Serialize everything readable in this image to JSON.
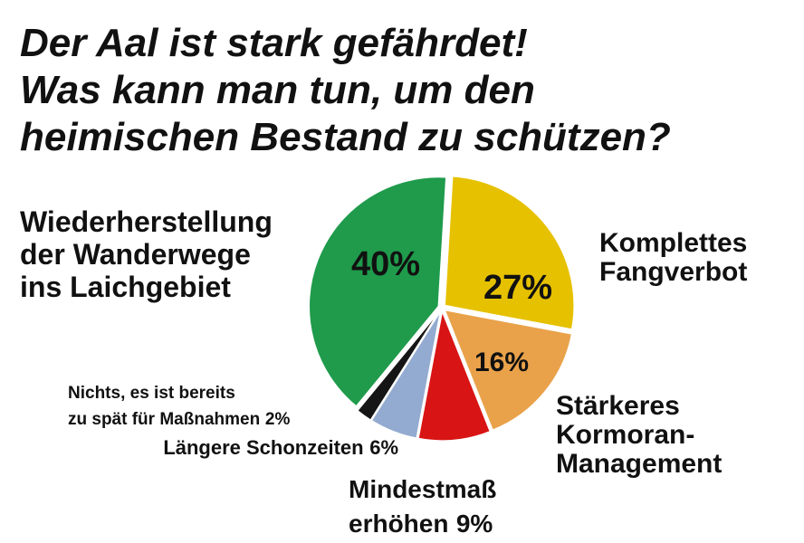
{
  "chart_data": {
    "type": "pie",
    "title": [
      "Der Aal ist stark gefährdet!",
      "Was kann man tun, um den",
      "heimischen Bestand zu schützen?"
    ],
    "categories": [
      [
        "Komplettes",
        "Fangverbot"
      ],
      [
        "Stärkeres",
        "Kormoran-",
        "Management"
      ],
      [
        "Mindestmaß",
        "erhöhen"
      ],
      [
        "Längere Schonzeiten"
      ],
      [
        "Nichts, es ist bereits",
        "zu spät für Maßnahmen"
      ],
      [
        "Wiederherstellung",
        "der Wanderwege",
        "ins Laichgebiet"
      ]
    ],
    "values": [
      27,
      16,
      9,
      6,
      2,
      40
    ],
    "value_labels": [
      "27%",
      "16%",
      "9%",
      "6%",
      "2%",
      "40%"
    ],
    "colors": [
      "#e6c100",
      "#e9a24a",
      "#d81414",
      "#93abd0",
      "#151515",
      "#1f9b4b"
    ]
  }
}
